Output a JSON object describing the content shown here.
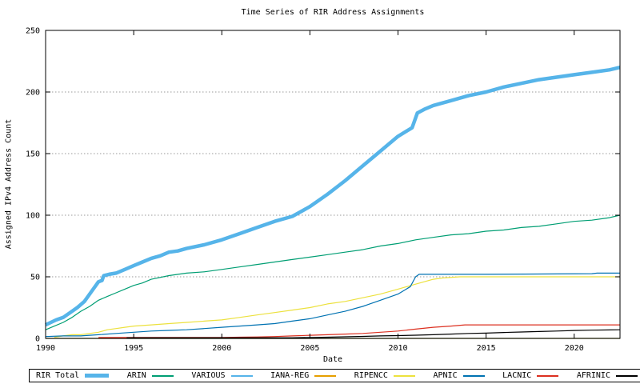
{
  "title": "Time Series of RIR Address Assignments",
  "x_axis_label": "Date",
  "y_axis_label": "Assigned IPv4 Address Count",
  "chart_data": {
    "type": "line",
    "title": "Time Series of RIR Address Assignments",
    "xlabel": "Date",
    "ylabel": "Assigned IPv4 Address Count",
    "xlim": [
      1990,
      2022.6
    ],
    "ylim": [
      0,
      250
    ],
    "grid": "horizontal dotted gridlines at 50,100,150,200",
    "legend_position": "bottom boxed row",
    "x_ticks": [
      {
        "value": 1990,
        "label": "1990"
      },
      {
        "value": 1995,
        "label": "1995"
      },
      {
        "value": 2000,
        "label": "2000"
      },
      {
        "value": 2005,
        "label": "2005"
      },
      {
        "value": 2010,
        "label": "2010"
      },
      {
        "value": 2015,
        "label": "2015"
      },
      {
        "value": 2020,
        "label": "2020"
      }
    ],
    "y_ticks": [
      {
        "value": 0,
        "label": "0"
      },
      {
        "value": 50,
        "label": "50"
      },
      {
        "value": 100,
        "label": "100"
      },
      {
        "value": 150,
        "label": "150"
      },
      {
        "value": 200,
        "label": "200"
      },
      {
        "value": 250,
        "label": "250"
      }
    ],
    "y_grid": [
      50,
      100,
      150,
      200
    ],
    "series": [
      {
        "name": "RIR Total",
        "color": "#56b4e9",
        "line_width": 4.5,
        "points": [
          [
            1990,
            11
          ],
          [
            1990.3,
            13
          ],
          [
            1990.6,
            15
          ],
          [
            1991,
            17
          ],
          [
            1991.4,
            21
          ],
          [
            1991.8,
            25
          ],
          [
            1992.2,
            30
          ],
          [
            1992.6,
            38
          ],
          [
            1993,
            46
          ],
          [
            1993.2,
            47
          ],
          [
            1993.3,
            51
          ],
          [
            1993.6,
            52
          ],
          [
            1994,
            53
          ],
          [
            1994.5,
            56
          ],
          [
            1995,
            59
          ],
          [
            1995.5,
            62
          ],
          [
            1996,
            65
          ],
          [
            1996.5,
            67
          ],
          [
            1997,
            70
          ],
          [
            1997.5,
            71
          ],
          [
            1998,
            73
          ],
          [
            1999,
            76
          ],
          [
            2000,
            80
          ],
          [
            2001,
            85
          ],
          [
            2002,
            90
          ],
          [
            2003,
            95
          ],
          [
            2004,
            99
          ],
          [
            2004.5,
            103
          ],
          [
            2005,
            107
          ],
          [
            2006,
            117
          ],
          [
            2007,
            128
          ],
          [
            2008,
            140
          ],
          [
            2009,
            152
          ],
          [
            2010,
            164
          ],
          [
            2010.8,
            171
          ],
          [
            2011.1,
            183
          ],
          [
            2011.5,
            186
          ],
          [
            2012,
            189
          ],
          [
            2013,
            193
          ],
          [
            2014,
            197
          ],
          [
            2015,
            200
          ],
          [
            2016,
            204
          ],
          [
            2017,
            207
          ],
          [
            2018,
            210
          ],
          [
            2019,
            212
          ],
          [
            2020,
            214
          ],
          [
            2021,
            216
          ],
          [
            2022,
            218
          ],
          [
            2022.6,
            220
          ]
        ]
      },
      {
        "name": "ARIN",
        "color": "#009e73",
        "line_width": 1.2,
        "points": [
          [
            1990,
            7
          ],
          [
            1990.5,
            10
          ],
          [
            1991,
            13
          ],
          [
            1991.5,
            17
          ],
          [
            1992,
            22
          ],
          [
            1992.5,
            26
          ],
          [
            1993,
            31
          ],
          [
            1993.5,
            34
          ],
          [
            1994,
            37
          ],
          [
            1994.5,
            40
          ],
          [
            1995,
            43
          ],
          [
            1995.5,
            45
          ],
          [
            1996,
            48
          ],
          [
            1997,
            51
          ],
          [
            1998,
            53
          ],
          [
            1999,
            54
          ],
          [
            2000,
            56
          ],
          [
            2001,
            58
          ],
          [
            2002,
            60
          ],
          [
            2003,
            62
          ],
          [
            2004,
            64
          ],
          [
            2005,
            66
          ],
          [
            2006,
            68
          ],
          [
            2007,
            70
          ],
          [
            2008,
            72
          ],
          [
            2009,
            75
          ],
          [
            2010,
            77
          ],
          [
            2011,
            80
          ],
          [
            2012,
            82
          ],
          [
            2013,
            84
          ],
          [
            2014,
            85
          ],
          [
            2015,
            87
          ],
          [
            2016,
            88
          ],
          [
            2017,
            90
          ],
          [
            2018,
            91
          ],
          [
            2019,
            93
          ],
          [
            2020,
            95
          ],
          [
            2021,
            96
          ],
          [
            2022,
            98
          ],
          [
            2022.6,
            100
          ]
        ]
      },
      {
        "name": "VARIOUS",
        "color": "#56b4e9",
        "line_width": 1.2,
        "points": [
          [
            1990,
            0
          ],
          [
            2022.6,
            0
          ]
        ]
      },
      {
        "name": "IANA-REG",
        "color": "#e69f00",
        "line_width": 1.2,
        "points": [
          [
            1990,
            0
          ],
          [
            2022.6,
            0
          ]
        ]
      },
      {
        "name": "RIPENCC",
        "color": "#ece13e",
        "line_width": 1.2,
        "points": [
          [
            1990.5,
            1
          ],
          [
            1991,
            2
          ],
          [
            1991.5,
            3
          ],
          [
            1992,
            3
          ],
          [
            1993,
            5
          ],
          [
            1993.5,
            7
          ],
          [
            1994,
            8
          ],
          [
            1994.5,
            9
          ],
          [
            1995,
            10
          ],
          [
            1996,
            11
          ],
          [
            1997,
            12
          ],
          [
            1998,
            13
          ],
          [
            1999,
            14
          ],
          [
            2000,
            15
          ],
          [
            2001,
            17
          ],
          [
            2002,
            19
          ],
          [
            2003,
            21
          ],
          [
            2004,
            23
          ],
          [
            2005,
            25
          ],
          [
            2006,
            28
          ],
          [
            2007,
            30
          ],
          [
            2008,
            33
          ],
          [
            2009,
            36
          ],
          [
            2010,
            40
          ],
          [
            2011,
            44
          ],
          [
            2012,
            48
          ],
          [
            2012.5,
            49
          ],
          [
            2013.5,
            50
          ],
          [
            2022.6,
            50
          ]
        ]
      },
      {
        "name": "APNIC",
        "color": "#0072b2",
        "line_width": 1.2,
        "points": [
          [
            1990,
            1.5
          ],
          [
            1991,
            2
          ],
          [
            1992,
            2
          ],
          [
            1993,
            3
          ],
          [
            1994,
            4
          ],
          [
            1995,
            5
          ],
          [
            1996,
            6
          ],
          [
            1997,
            6.5
          ],
          [
            1998,
            7
          ],
          [
            1999,
            8
          ],
          [
            2000,
            9
          ],
          [
            2001,
            10
          ],
          [
            2002,
            11
          ],
          [
            2003,
            12
          ],
          [
            2004,
            14
          ],
          [
            2005,
            16
          ],
          [
            2006,
            19
          ],
          [
            2007,
            22
          ],
          [
            2008,
            26
          ],
          [
            2009,
            31
          ],
          [
            2010,
            36
          ],
          [
            2010.7,
            42
          ],
          [
            2011,
            50
          ],
          [
            2011.2,
            52
          ],
          [
            2015,
            52
          ],
          [
            2021,
            52.5
          ],
          [
            2021.3,
            53
          ],
          [
            2022.6,
            53
          ]
        ]
      },
      {
        "name": "LACNIC",
        "color": "#dc3020",
        "line_width": 1.2,
        "points": [
          [
            1993,
            0.7
          ],
          [
            1994.6,
            0.7
          ],
          [
            2000,
            0.8
          ],
          [
            2001,
            1
          ],
          [
            2002,
            1.2
          ],
          [
            2003,
            1.5
          ],
          [
            2004,
            2
          ],
          [
            2005,
            2.5
          ],
          [
            2006,
            3
          ],
          [
            2007,
            3.5
          ],
          [
            2008,
            4
          ],
          [
            2009,
            5
          ],
          [
            2010,
            6
          ],
          [
            2011,
            7.5
          ],
          [
            2012,
            9
          ],
          [
            2013,
            10
          ],
          [
            2013.8,
            11
          ],
          [
            2022.6,
            11
          ]
        ]
      },
      {
        "name": "AFRINIC",
        "color": "#000000",
        "line_width": 1.2,
        "points": [
          [
            1994.6,
            0.5
          ],
          [
            2004,
            0.5
          ],
          [
            2005,
            0.8
          ],
          [
            2006,
            1
          ],
          [
            2007,
            1.3
          ],
          [
            2008,
            1.6
          ],
          [
            2009,
            2
          ],
          [
            2010,
            2.3
          ],
          [
            2011,
            2.6
          ],
          [
            2012,
            3
          ],
          [
            2013,
            3.5
          ],
          [
            2014,
            4
          ],
          [
            2015,
            4.3
          ],
          [
            2016,
            4.8
          ],
          [
            2017,
            5.2
          ],
          [
            2018,
            5.6
          ],
          [
            2019,
            6
          ],
          [
            2020,
            6.4
          ],
          [
            2021,
            6.7
          ],
          [
            2022.6,
            7
          ]
        ]
      }
    ]
  }
}
